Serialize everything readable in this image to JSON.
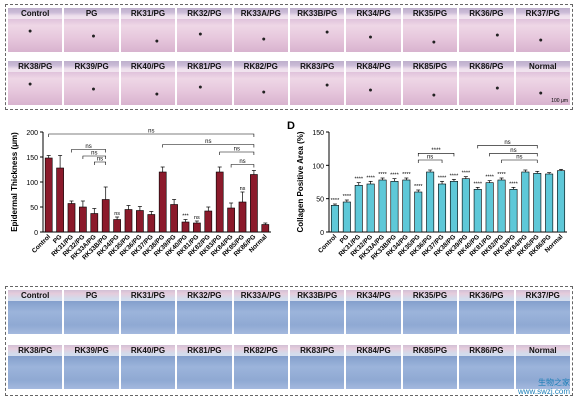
{
  "he_panel": {
    "row1": [
      "Control",
      "PG",
      "RK31/PG",
      "RK32/PG",
      "RK33A/PG",
      "RK33B/PG",
      "RK34/PG",
      "RK35/PG",
      "RK36/PG",
      "RK37/PG"
    ],
    "row2": [
      "RK38/PG",
      "RK39/PG",
      "RK40/PG",
      "RK81/PG",
      "RK82/PG",
      "RK83/PG",
      "RK84/PG",
      "RK85/PG",
      "RK86/PG",
      "Normal"
    ],
    "scale_bar": "100 μm"
  },
  "mt_panel": {
    "row1": [
      "Control",
      "PG",
      "RK31/PG",
      "RK32/PG",
      "RK33A/PG",
      "RK33B/PG",
      "RK34/PG",
      "RK35/PG",
      "RK36/PG",
      "RK37/PG"
    ],
    "row2": [
      "RK38/PG",
      "RK39/PG",
      "RK40/PG",
      "RK81/PG",
      "RK82/PG",
      "RK83/PG",
      "RK84/PG",
      "RK85/PG",
      "RK86/PG",
      "Normal"
    ]
  },
  "panel_letter_d": "D",
  "significance": {
    "ns": "ns",
    "three": "***",
    "four": "****"
  },
  "chart_data": [
    {
      "type": "bar",
      "ylabel": "Epidermal Thickness (μm)",
      "ylim": [
        0,
        200
      ],
      "yticks": [
        0,
        50,
        100,
        150,
        200
      ],
      "color": "#8b1a2b",
      "categories": [
        "Control",
        "PG",
        "RK31/PG",
        "RK32/PG",
        "RK33A/PG",
        "RK33B/PG",
        "RK34/PG",
        "RK35/PG",
        "RK36/PG",
        "RK37/PG",
        "RK38/PG",
        "RK39/PG",
        "RK40/PG",
        "RK81/PG",
        "RK82/PG",
        "RK83/PG",
        "RK84/PG",
        "RK85/PG",
        "RK86/PG",
        "Normal"
      ],
      "values": [
        148,
        128,
        57,
        50,
        37,
        65,
        25,
        45,
        43,
        35,
        120,
        55,
        20,
        18,
        42,
        120,
        48,
        60,
        115,
        15
      ],
      "errors": [
        5,
        25,
        5,
        12,
        10,
        25,
        5,
        8,
        8,
        6,
        10,
        10,
        5,
        4,
        8,
        10,
        10,
        20,
        8,
        3
      ]
    },
    {
      "type": "bar",
      "ylabel": "Collagen Positive Area (%)",
      "ylim": [
        0,
        150
      ],
      "yticks": [
        0,
        50,
        100,
        150
      ],
      "color": "#5ec8d8",
      "categories": [
        "Control",
        "PG",
        "RK31/PG",
        "RK32/PG",
        "RK33A/PG",
        "RK33B/PG",
        "RK34/PG",
        "RK35/PG",
        "RK36/PG",
        "RK37/PG",
        "RK38/PG",
        "RK39/PG",
        "RK40/PG",
        "RK81/PG",
        "RK82/PG",
        "RK83/PG",
        "RK84/PG",
        "RK85/PG",
        "RK86/PG",
        "Normal"
      ],
      "values": [
        40,
        45,
        70,
        72,
        78,
        76,
        78,
        60,
        90,
        72,
        76,
        80,
        64,
        74,
        78,
        64,
        90,
        88,
        87,
        92
      ],
      "errors": [
        2,
        3,
        4,
        4,
        3,
        4,
        3,
        3,
        3,
        4,
        3,
        3,
        3,
        3,
        3,
        3,
        3,
        3,
        2,
        2
      ]
    }
  ],
  "watermark": {
    "line1": "生物之家",
    "line2": "www.swzj.com"
  }
}
